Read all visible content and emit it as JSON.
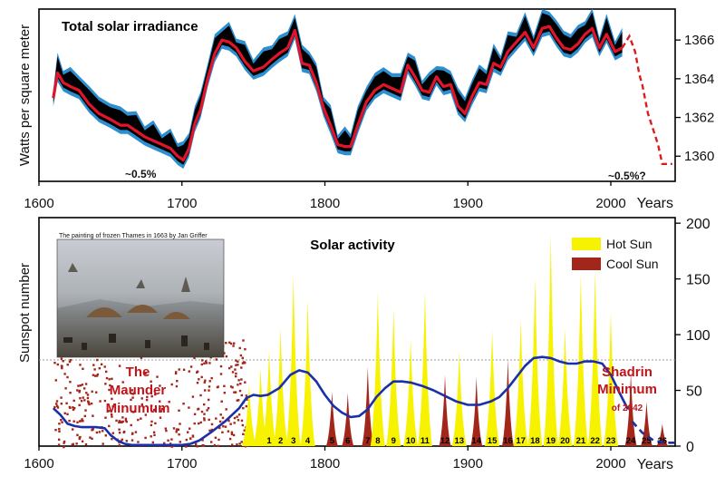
{
  "colors": {
    "hot": "#f7f200",
    "cool": "#a3261a",
    "blue_band": "#2e8fd0",
    "red_line": "#e0142a",
    "black_band": "#000000",
    "activity_line": "#1a2fa8",
    "maunder_dots": "#a3261a",
    "dashed_red": "#d81e1e"
  },
  "chart_data": [
    {
      "type": "area",
      "title": "Total solar irradiance",
      "ylabel": "Watts per square meter",
      "xlabel": "Years",
      "xlim": [
        1600,
        2045
      ],
      "ylim": [
        1358.7,
        1367.6
      ],
      "x_ticks": [
        "1600",
        "1700",
        "1800",
        "1900",
        "2000"
      ],
      "y_ticks": [
        "1360",
        "1362",
        "1364",
        "1366"
      ],
      "annotations": [
        "~0.5%",
        "~0.5%?"
      ],
      "series": [
        {
          "x": [
            1610,
            1613,
            1617,
            1622,
            1628,
            1635,
            1642,
            1650,
            1657,
            1662,
            1668,
            1674,
            1680,
            1686,
            1692,
            1697,
            1701,
            1705,
            1709,
            1713,
            1718,
            1723,
            1728,
            1733,
            1738,
            1744,
            1750,
            1757,
            1763,
            1768,
            1774,
            1779,
            1784,
            1789,
            1794,
            1799,
            1804,
            1809,
            1814,
            1818,
            1823,
            1829,
            1835,
            1841,
            1847,
            1853,
            1858,
            1863,
            1868,
            1873,
            1878,
            1883,
            1888,
            1893,
            1898,
            1903,
            1908,
            1913,
            1918,
            1923,
            1928,
            1934,
            1940,
            1946,
            1952,
            1957,
            1962,
            1967,
            1972,
            1977,
            1982,
            1987,
            1992,
            1997,
            2003,
            2008
          ],
          "values": [
            1363.0,
            1364.3,
            1363.8,
            1363.6,
            1363.4,
            1362.7,
            1362.2,
            1361.9,
            1361.6,
            1361.6,
            1361.3,
            1361.0,
            1360.8,
            1360.6,
            1360.4,
            1360.0,
            1359.8,
            1360.4,
            1361.7,
            1362.4,
            1364.0,
            1365.3,
            1366.0,
            1365.9,
            1365.6,
            1364.9,
            1364.4,
            1364.6,
            1365.0,
            1365.3,
            1365.6,
            1366.5,
            1364.8,
            1364.7,
            1363.8,
            1362.5,
            1361.6,
            1360.6,
            1360.5,
            1360.5,
            1361.6,
            1362.8,
            1363.4,
            1363.7,
            1363.5,
            1363.3,
            1364.7,
            1364.1,
            1363.4,
            1363.3,
            1364.1,
            1363.6,
            1363.7,
            1362.6,
            1362.2,
            1363.1,
            1363.8,
            1363.7,
            1364.8,
            1364.6,
            1365.4,
            1365.9,
            1366.4,
            1365.6,
            1366.6,
            1366.7,
            1366.1,
            1365.6,
            1365.5,
            1365.8,
            1366.3,
            1366.6,
            1365.6,
            1366.3,
            1365.4,
            1365.6
          ]
        },
        {
          "name": "forecast",
          "x": [
            2008,
            2013,
            2017,
            2020,
            2022,
            2026,
            2030,
            2033,
            2036,
            2040,
            2043
          ],
          "values": [
            1365.6,
            1366.2,
            1365.4,
            1364.2,
            1363.7,
            1362.2,
            1361.3,
            1360.6,
            1359.6,
            1359.6,
            1359.6
          ]
        }
      ]
    },
    {
      "type": "bar",
      "title": "Solar activity",
      "ylabel": "Sunspot number",
      "xlabel": "Years",
      "xlim": [
        1600,
        2045
      ],
      "ylim": [
        0,
        205
      ],
      "x_ticks": [
        "1600",
        "1700",
        "1800",
        "1900",
        "2000"
      ],
      "y_ticks": [
        "0",
        "50",
        "100",
        "150",
        "200"
      ],
      "legend": {
        "position": "top-right",
        "entries": [
          "Hot Sun",
          "Cool Sun"
        ]
      },
      "cycles": [
        {
          "label": "1",
          "year": 1761,
          "peak": 86,
          "kind": "hot"
        },
        {
          "label": "2",
          "year": 1769,
          "peak": 106,
          "kind": "hot"
        },
        {
          "label": "3",
          "year": 1778,
          "peak": 154,
          "kind": "hot"
        },
        {
          "label": "4",
          "year": 1788,
          "peak": 132,
          "kind": "hot"
        },
        {
          "label": "5",
          "year": 1805,
          "peak": 49,
          "kind": "cool"
        },
        {
          "label": "6",
          "year": 1816,
          "peak": 48,
          "kind": "cool"
        },
        {
          "label": "7",
          "year": 1830,
          "peak": 71,
          "kind": "cool"
        },
        {
          "label": "8",
          "year": 1837,
          "peak": 138,
          "kind": "hot"
        },
        {
          "label": "9",
          "year": 1848,
          "peak": 124,
          "kind": "hot"
        },
        {
          "label": "10",
          "year": 1860,
          "peak": 96,
          "kind": "hot"
        },
        {
          "label": "11",
          "year": 1870,
          "peak": 139,
          "kind": "hot"
        },
        {
          "label": "12",
          "year": 1884,
          "peak": 64,
          "kind": "cool"
        },
        {
          "label": "13",
          "year": 1894,
          "peak": 85,
          "kind": "hot"
        },
        {
          "label": "14",
          "year": 1906,
          "peak": 62,
          "kind": "cool"
        },
        {
          "label": "15",
          "year": 1917,
          "peak": 104,
          "kind": "hot"
        },
        {
          "label": "16",
          "year": 1928,
          "peak": 78,
          "kind": "cool"
        },
        {
          "label": "17",
          "year": 1937,
          "peak": 114,
          "kind": "hot"
        },
        {
          "label": "18",
          "year": 1947,
          "peak": 152,
          "kind": "hot"
        },
        {
          "label": "19",
          "year": 1958,
          "peak": 190,
          "kind": "hot"
        },
        {
          "label": "20",
          "year": 1968,
          "peak": 106,
          "kind": "hot"
        },
        {
          "label": "21",
          "year": 1979,
          "peak": 155,
          "kind": "hot"
        },
        {
          "label": "22",
          "year": 1989,
          "peak": 158,
          "kind": "hot"
        },
        {
          "label": "23",
          "year": 2000,
          "peak": 120,
          "kind": "hot"
        },
        {
          "label": "24",
          "year": 2014,
          "peak": 66,
          "kind": "cool"
        },
        {
          "label": "25",
          "year": 2025,
          "peak": 40,
          "kind": "cool"
        },
        {
          "label": "26",
          "year": 2036,
          "peak": 20,
          "kind": "cool"
        }
      ],
      "pre_cycles": [
        {
          "year": 1747,
          "peak": 55,
          "kind": "hot"
        },
        {
          "year": 1755,
          "peak": 70,
          "kind": "hot"
        }
      ],
      "smoothed": {
        "x": [
          1610,
          1615,
          1620,
          1625,
          1630,
          1640,
          1646,
          1650,
          1655,
          1660,
          1665,
          1670,
          1680,
          1690,
          1700,
          1706,
          1712,
          1720,
          1730,
          1740,
          1745,
          1750,
          1755,
          1760,
          1768,
          1776,
          1782,
          1788,
          1794,
          1800,
          1806,
          1812,
          1818,
          1824,
          1830,
          1836,
          1842,
          1848,
          1854,
          1860,
          1868,
          1876,
          1884,
          1892,
          1900,
          1908,
          1916,
          1922,
          1928,
          1934,
          1940,
          1946,
          1952,
          1958,
          1964,
          1970,
          1976,
          1982,
          1988,
          1994,
          2000,
          2006,
          2012
        ],
        "values": [
          34,
          28,
          20,
          18,
          17,
          17,
          16,
          10,
          5,
          2,
          1,
          1,
          1,
          1,
          1,
          2,
          5,
          12,
          22,
          34,
          43,
          46,
          45,
          46,
          52,
          64,
          68,
          66,
          58,
          46,
          36,
          30,
          26,
          27,
          33,
          44,
          52,
          58,
          58,
          57,
          54,
          50,
          45,
          40,
          37,
          37,
          40,
          44,
          52,
          62,
          72,
          79,
          80,
          79,
          76,
          74,
          74,
          76,
          76,
          74,
          64,
          48,
          33
        ]
      },
      "forecast_line": {
        "x": [
          2015,
          2022,
          2030,
          2038,
          2045
        ],
        "values": [
          22,
          12,
          5,
          3,
          3
        ]
      },
      "annotations": {
        "maunder": [
          "The",
          "Maunder",
          "Minumum"
        ],
        "shadrin": [
          "Shadrin",
          "Minimum"
        ],
        "shadrin_sub": "of 2042",
        "painting_caption": "The painting of frozen Thames in 1663 by Jan Griffer"
      }
    }
  ]
}
